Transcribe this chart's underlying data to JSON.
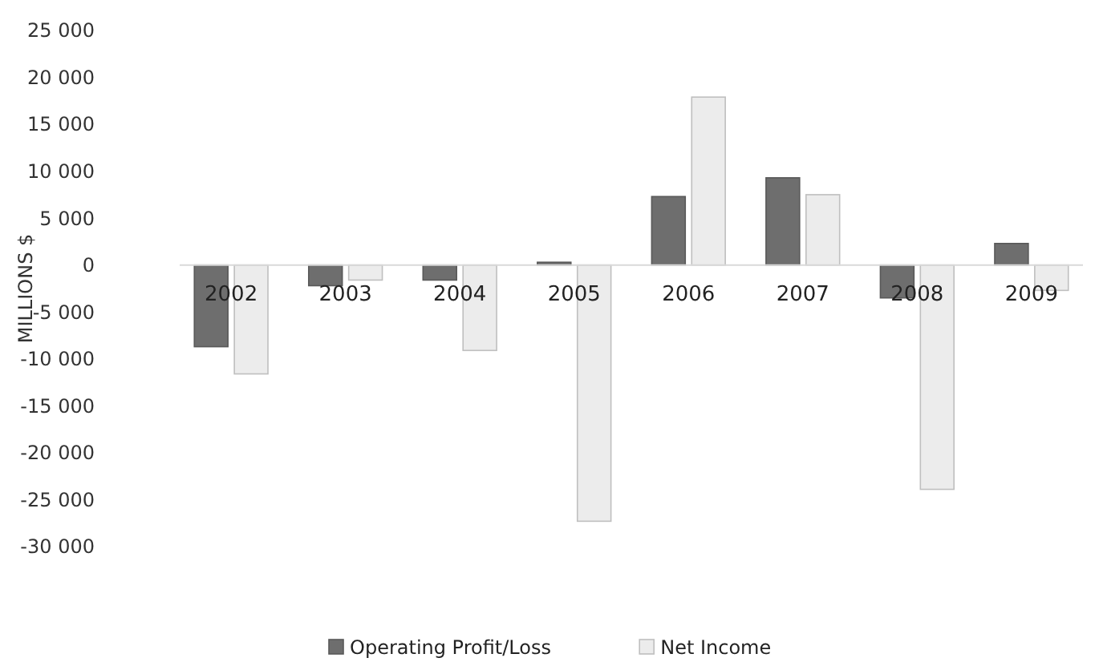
{
  "chart_data": {
    "type": "bar",
    "ylabel": "MILLIONS $",
    "categories": [
      "2002",
      "2003",
      "2004",
      "2005",
      "2006",
      "2007",
      "2008",
      "2009"
    ],
    "series": [
      {
        "name": "Operating Profit/Loss",
        "color": "#6e6e6e",
        "values": [
          -8700,
          -2200,
          -1600,
          300,
          7300,
          9300,
          -3500,
          2300
        ]
      },
      {
        "name": "Net Income",
        "color": "#ececec",
        "values": [
          -11600,
          -1600,
          -9100,
          -27300,
          17900,
          7500,
          -23900,
          -2700
        ]
      }
    ],
    "ylim": [
      -30000,
      25000
    ],
    "yticks": [
      {
        "value": -30000,
        "label": "-30 000"
      },
      {
        "value": -25000,
        "label": "-25 000"
      },
      {
        "value": -20000,
        "label": "-20 000"
      },
      {
        "value": -15000,
        "label": "-15 000"
      },
      {
        "value": -10000,
        "label": "-10 000"
      },
      {
        "value": -5000,
        "label": "-5 000"
      },
      0,
      {
        "value": 5000,
        "label": "5 000"
      },
      {
        "value": 10000,
        "label": "10 000"
      },
      {
        "value": 15000,
        "label": "15 000"
      },
      {
        "value": 20000,
        "label": "20 000"
      },
      {
        "value": 25000,
        "label": "25 000"
      }
    ],
    "legend": "bottom",
    "grid": false
  }
}
